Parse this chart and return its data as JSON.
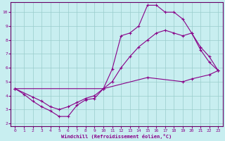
{
  "xlabel": "Windchill (Refroidissement éolien,°C)",
  "bg_color": "#c8eef0",
  "line_color": "#880088",
  "grid_color": "#99cccc",
  "spine_color": "#660066",
  "xlim": [
    -0.5,
    23.5
  ],
  "ylim": [
    1.8,
    10.7
  ],
  "xticks": [
    0,
    1,
    2,
    3,
    4,
    5,
    6,
    7,
    8,
    9,
    10,
    11,
    12,
    13,
    14,
    15,
    16,
    17,
    18,
    19,
    20,
    21,
    22,
    23
  ],
  "yticks": [
    2,
    3,
    4,
    5,
    6,
    7,
    8,
    9,
    10
  ],
  "line1_x": [
    0,
    1,
    2,
    3,
    4,
    5,
    6,
    7,
    8,
    9,
    10,
    11,
    12,
    13,
    14,
    15,
    16,
    17,
    18,
    19,
    20,
    21,
    22,
    23
  ],
  "line1_y": [
    4.5,
    4.1,
    3.6,
    3.2,
    2.9,
    2.5,
    2.5,
    3.3,
    3.7,
    3.8,
    4.5,
    5.9,
    8.3,
    8.5,
    9.0,
    10.5,
    10.5,
    10.0,
    10.0,
    9.5,
    8.5,
    7.3,
    6.4,
    5.8
  ],
  "line2_x": [
    0,
    2,
    3,
    4,
    5,
    6,
    7,
    8,
    9,
    10,
    11,
    12,
    13,
    14,
    15,
    16,
    17,
    18,
    19,
    20,
    21,
    22,
    23
  ],
  "line2_y": [
    4.5,
    3.9,
    3.6,
    3.2,
    3.0,
    3.2,
    3.5,
    3.8,
    4.0,
    4.5,
    5.0,
    6.0,
    6.8,
    7.5,
    8.0,
    8.5,
    8.7,
    8.5,
    8.3,
    8.5,
    7.5,
    6.8,
    5.8
  ],
  "line3_x": [
    0,
    10,
    15,
    19,
    20,
    22,
    23
  ],
  "line3_y": [
    4.5,
    4.5,
    5.3,
    5.0,
    5.2,
    5.5,
    5.8
  ]
}
